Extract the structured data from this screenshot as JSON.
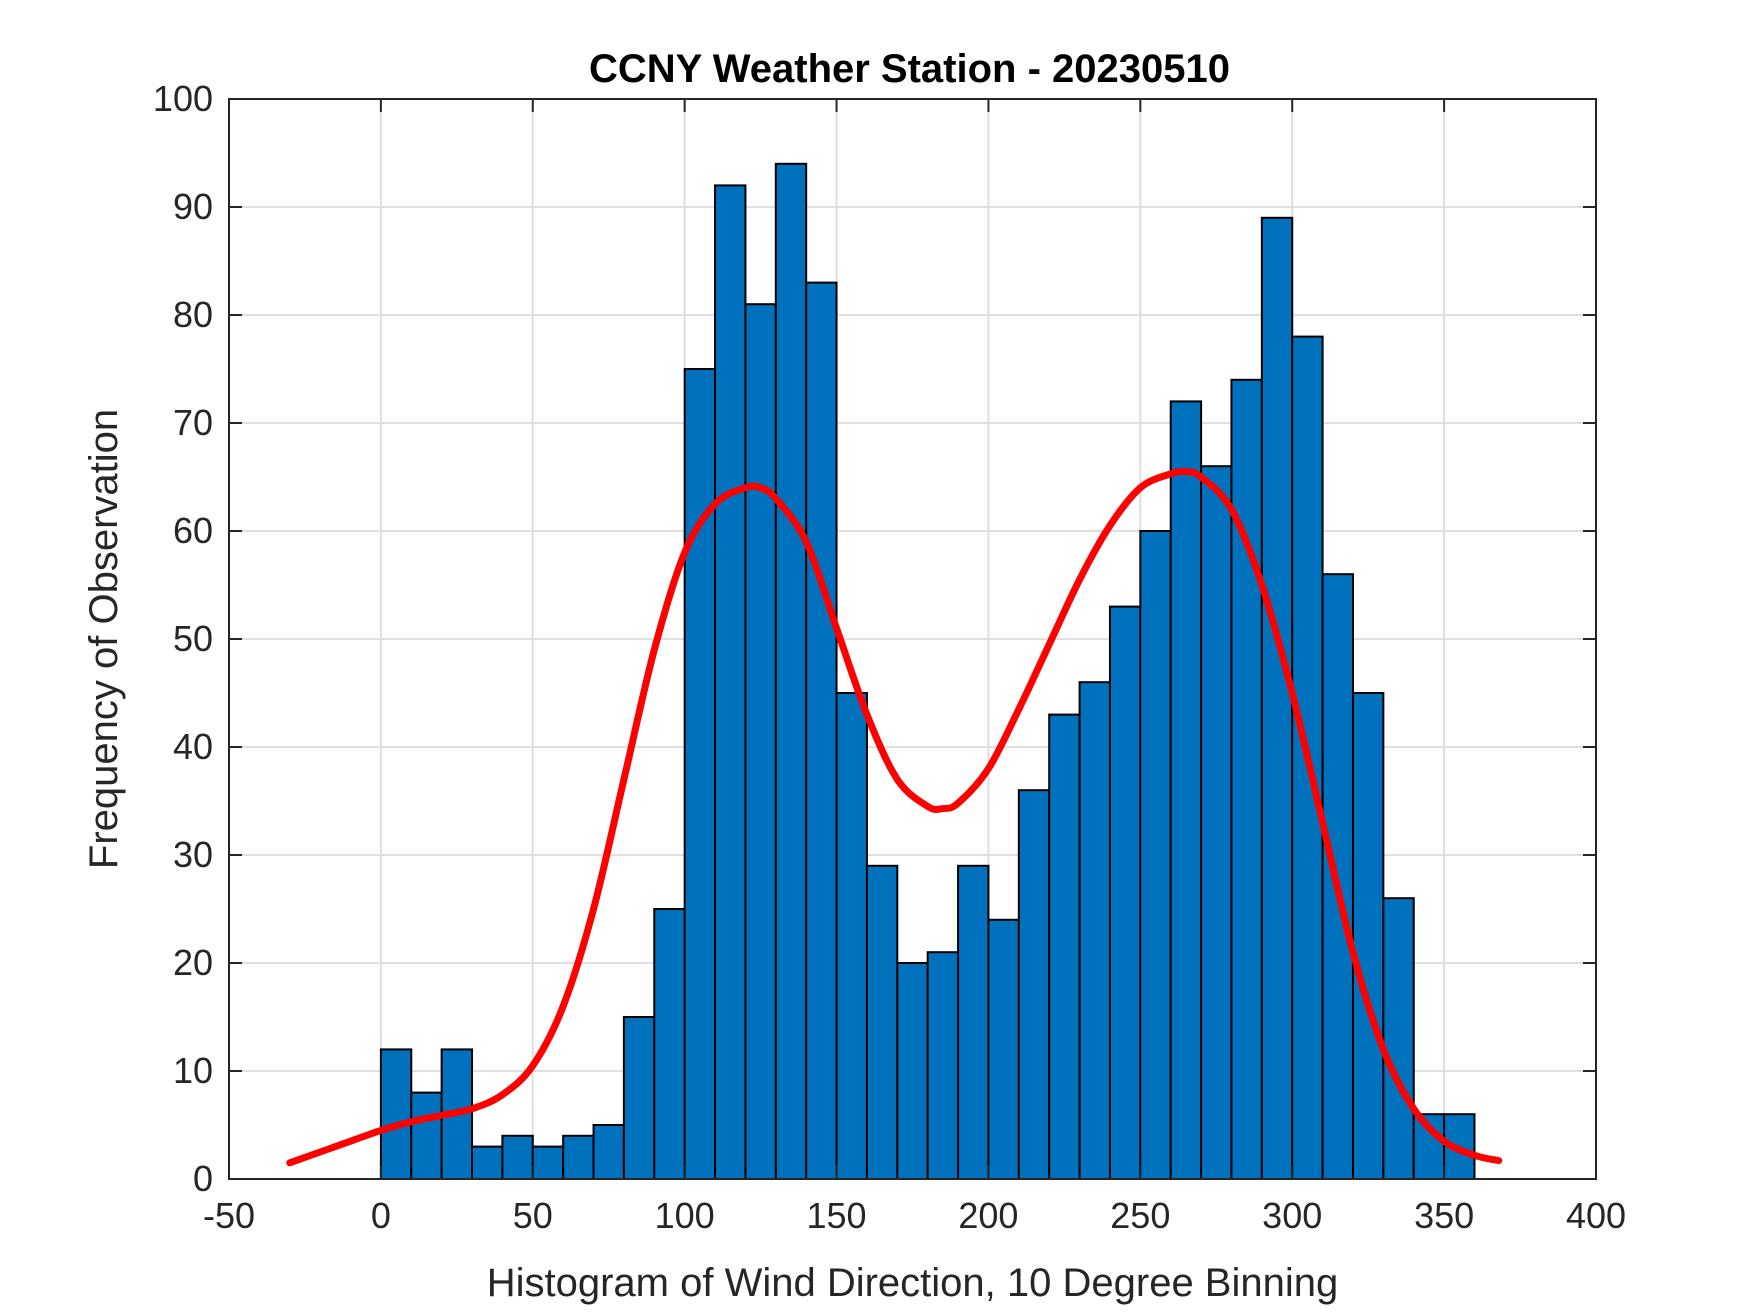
{
  "chart_data": {
    "type": "bar",
    "title": "CCNY Weather Station - 20230510",
    "xlabel": "Histogram of Wind Direction, 10 Degree Binning",
    "ylabel": "Frequency of Observation",
    "xlim": [
      -50,
      400
    ],
    "ylim": [
      0,
      100
    ],
    "xticks": [
      -50,
      0,
      50,
      100,
      150,
      200,
      250,
      300,
      350,
      400
    ],
    "yticks": [
      0,
      10,
      20,
      30,
      40,
      50,
      60,
      70,
      80,
      90,
      100
    ],
    "grid": true,
    "bin_width": 10,
    "bin_edges_start": 0,
    "values": [
      12,
      8,
      12,
      3,
      4,
      3,
      4,
      5,
      15,
      25,
      75,
      92,
      81,
      94,
      83,
      45,
      29,
      20,
      21,
      29,
      24,
      36,
      43,
      46,
      53,
      60,
      72,
      66,
      74,
      89,
      78,
      56,
      45,
      26,
      6,
      6
    ],
    "bar_color": "#0072BD",
    "fit_curve": {
      "name": "density fit",
      "color": "#FF0000",
      "x": [
        -30,
        -20,
        -10,
        0,
        10,
        20,
        30,
        40,
        50,
        60,
        70,
        80,
        90,
        100,
        110,
        120,
        125,
        130,
        140,
        150,
        160,
        170,
        180,
        185,
        190,
        200,
        210,
        220,
        230,
        240,
        250,
        260,
        265,
        270,
        280,
        290,
        300,
        310,
        320,
        330,
        340,
        350,
        360,
        368
      ],
      "y": [
        1.5,
        2.5,
        3.5,
        4.5,
        5.3,
        5.9,
        6.5,
        7.8,
        10.5,
        16,
        25,
        37,
        49,
        58,
        62.5,
        64,
        64,
        63,
        59,
        51,
        43,
        37,
        34.5,
        34.3,
        34.8,
        38,
        43.5,
        49.5,
        55.5,
        60.5,
        64,
        65.3,
        65.5,
        65,
        62,
        55,
        45,
        33,
        21,
        12,
        6.5,
        3.5,
        2.2,
        1.7
      ]
    }
  }
}
